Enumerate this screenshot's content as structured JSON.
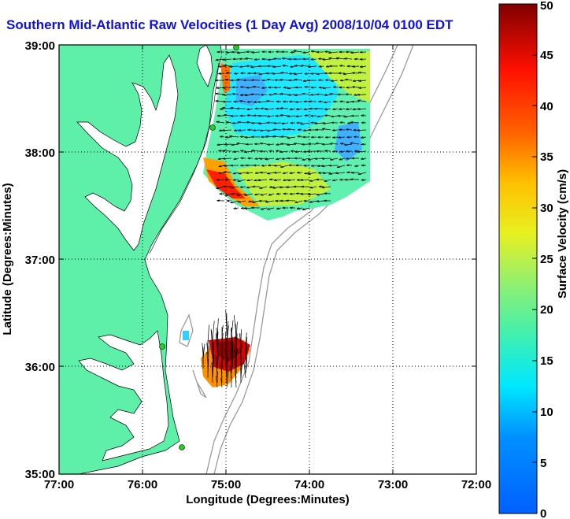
{
  "title": "Southern Mid-Atlantic Raw Velocities (1 Day Avg) 2008/10/04 0100 EDT",
  "map": {
    "xlabel": "Longitude (Degrees:Minutes)",
    "ylabel": "Latitude (Degrees:Minutes)",
    "x_ticks": [
      "77:00",
      "76:00",
      "75:00",
      "74:00",
      "73:00",
      "72:00"
    ],
    "y_ticks": [
      "39:00",
      "38:00",
      "37:00",
      "36:00",
      "35:00"
    ],
    "grid": true,
    "land_color": "#5ef0a8",
    "colors": {
      "arrow": "#000000",
      "bathymetry": "#9a9a9a",
      "station": "#22d022"
    }
  },
  "colorbar": {
    "label": "Surface Velocity (cm/s)",
    "ticks": [
      "0",
      "5",
      "10",
      "15",
      "20",
      "25",
      "30",
      "35",
      "40",
      "45",
      "50"
    ],
    "min": 0,
    "max": 50
  },
  "chart_data": {
    "type": "heatmap",
    "xlim": [
      -77,
      -72
    ],
    "ylim": [
      35,
      39
    ],
    "value_range": [
      0,
      50
    ],
    "units": "cm/s",
    "regions": [
      {
        "name": "",
        "lon_range": [
          -75.1,
          -73.1
        ],
        "lat_range": [
          37.5,
          38.95
        ],
        "typical_velocity": 15
      },
      {
        "name": "",
        "lon_range": [
          -75.3,
          -74.8
        ],
        "lat_range": [
          35.8,
          36.2
        ],
        "typical_velocity": 45
      }
    ]
  }
}
